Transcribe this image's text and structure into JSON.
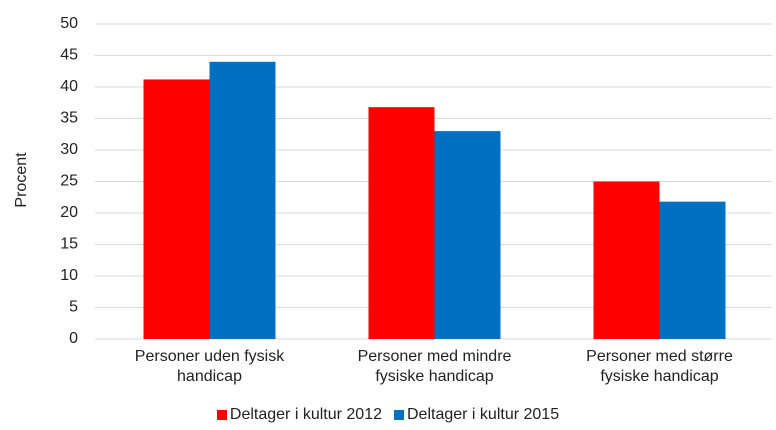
{
  "chart_data": {
    "type": "bar",
    "y_label": "Procent",
    "categories": [
      "Personer uden fysisk handicap",
      "Personer med mindre fysiske handicap",
      "Personer med større fysiske handicap"
    ],
    "series": [
      {
        "name": "Deltager i kultur 2012",
        "color": "#ff0000",
        "values": [
          41.2,
          36.8,
          25
        ]
      },
      {
        "name": "Deltager i kultur 2015",
        "color": "#0070c0",
        "values": [
          44,
          33,
          21.8
        ]
      }
    ],
    "ylim": [
      0,
      50
    ],
    "yticks": [
      0,
      5,
      10,
      15,
      20,
      25,
      30,
      35,
      40,
      45,
      50
    ],
    "grid": true
  }
}
